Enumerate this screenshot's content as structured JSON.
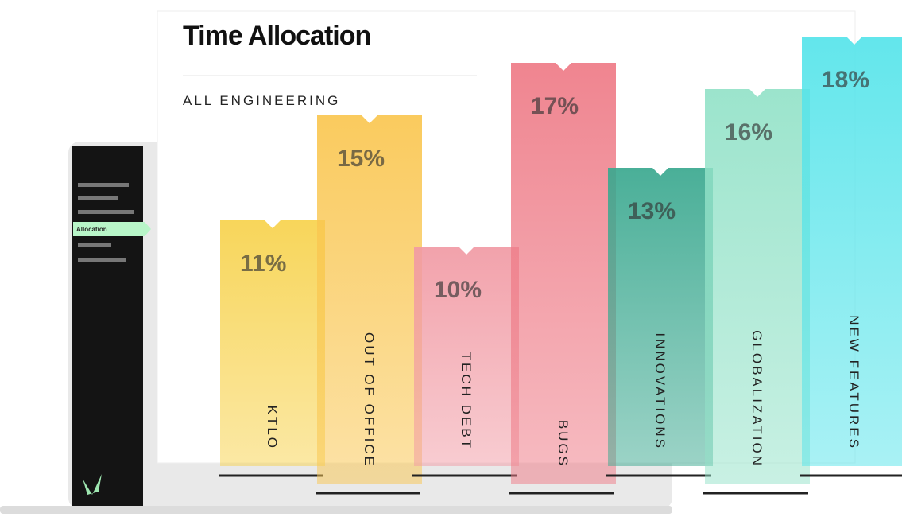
{
  "sidebar": {
    "active_item": "Allocation"
  },
  "chart_data": {
    "type": "bar",
    "title": "Time Allocation",
    "subtitle": "ALL ENGINEERING",
    "categories": [
      "KTLO",
      "OUT OF OFFICE",
      "TECH DEBT",
      "BUGS",
      "INNOVATIONS",
      "GLOBALIZATION",
      "NEW FEATURES"
    ],
    "values": [
      11,
      15,
      10,
      17,
      13,
      16,
      18
    ],
    "value_labels": [
      "11%",
      "15%",
      "10%",
      "17%",
      "13%",
      "16%",
      "18%"
    ],
    "colors": [
      "#f7d24c",
      "#f9c650",
      "#f19aa4",
      "#ee7a86",
      "#3aa88f",
      "#93e2c8",
      "#55e4ea"
    ]
  }
}
